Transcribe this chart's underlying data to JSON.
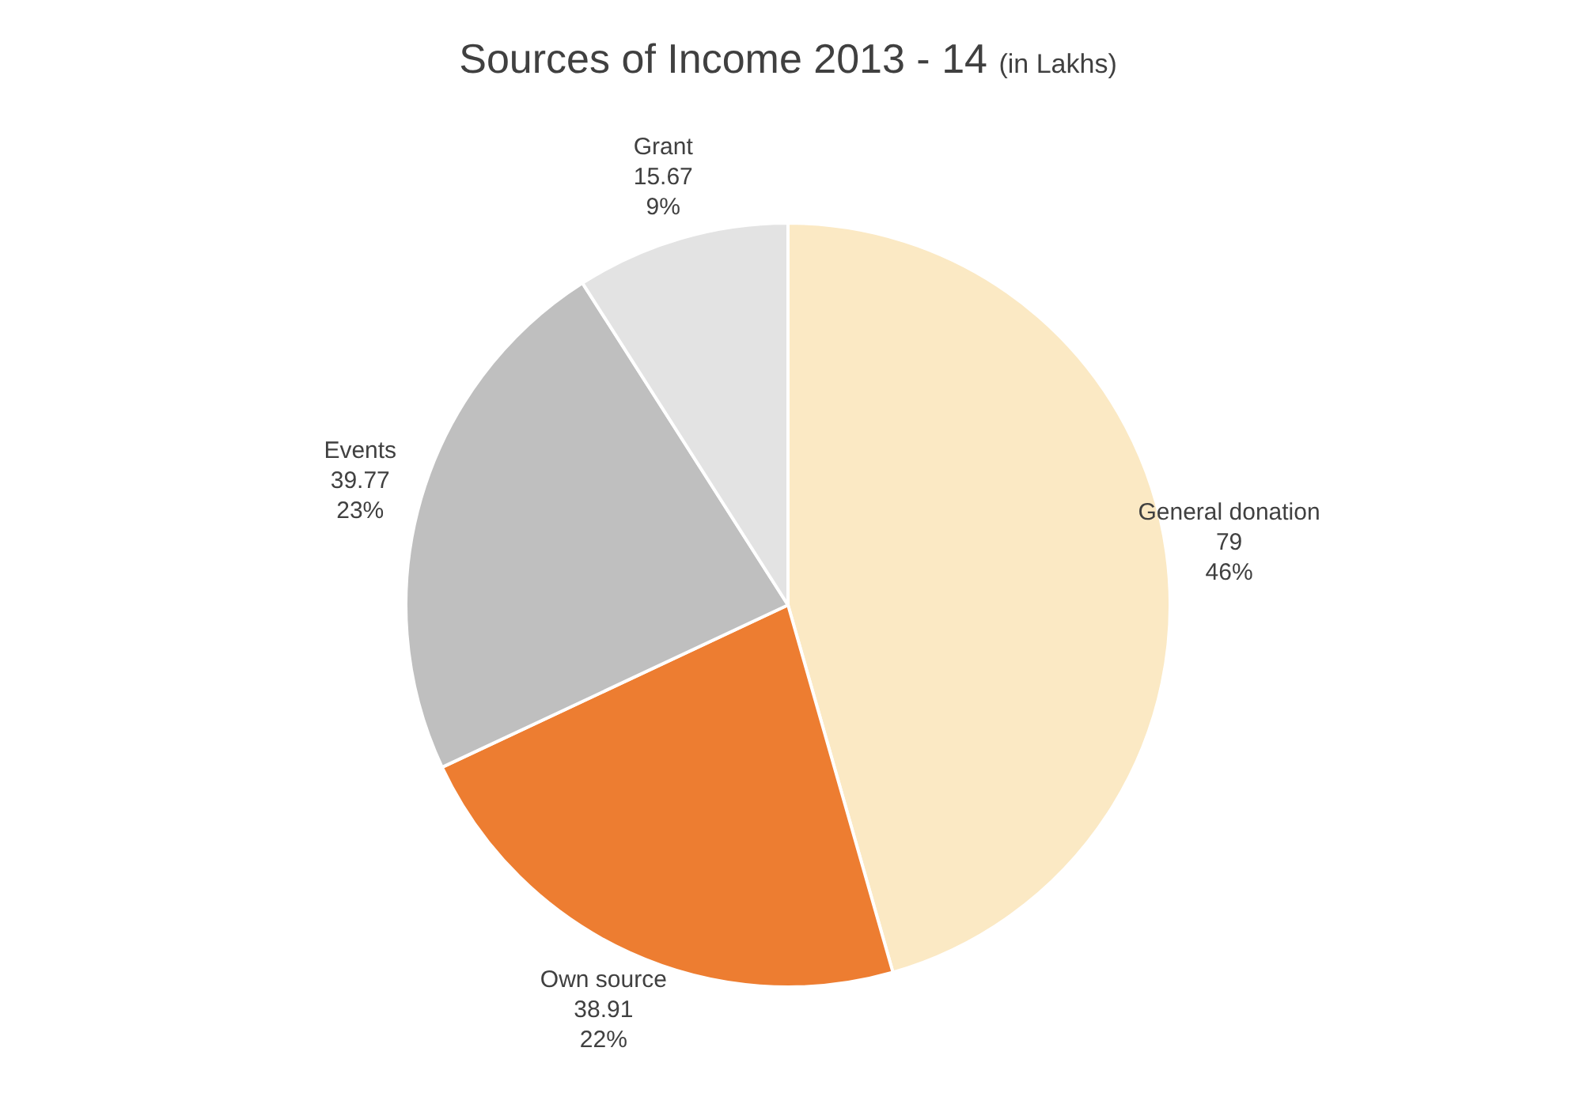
{
  "chart_data": {
    "type": "pie",
    "title": "Sources of Income 2013 - 14",
    "subtitle": "(in Lakhs)",
    "categories": [
      "General donation",
      "Own source",
      "Events",
      "Grant"
    ],
    "values": [
      79,
      38.91,
      39.77,
      15.67
    ],
    "colors": [
      "#fbe9c4",
      "#ed7d31",
      "#bfbfbf",
      "#e3e3e3"
    ],
    "value_labels": [
      "79\n46%",
      "38.91\n22%",
      "39.77\n23%",
      "15.67\n9%"
    ],
    "legend": false
  }
}
